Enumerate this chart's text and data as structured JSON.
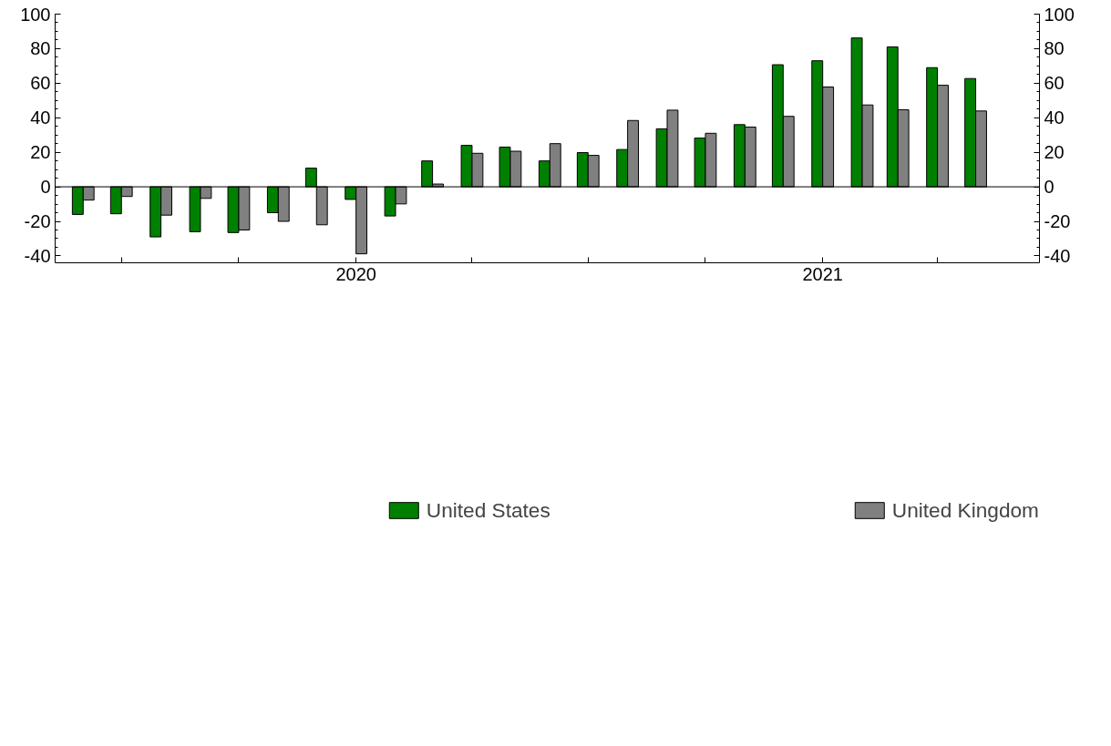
{
  "chart_data": {
    "type": "bar",
    "x": [
      "2019-06",
      "2019-07",
      "2019-08",
      "2019-09",
      "2019-10",
      "2019-11",
      "2019-12",
      "2020-01",
      "2020-02",
      "2020-03",
      "2020-04",
      "2020-05",
      "2020-06",
      "2020-07",
      "2020-08",
      "2020-09",
      "2020-10",
      "2020-11",
      "2020-12",
      "2021-01",
      "2021-02",
      "2021-03",
      "2021-04",
      "2021-05"
    ],
    "series": [
      {
        "name": "United States",
        "color": "#008000",
        "values": [
          -16,
          -15.6,
          -29,
          -26,
          -26.5,
          -15,
          10.8,
          -7.3,
          -16.9,
          15,
          24,
          23,
          15,
          19.8,
          21.6,
          33.6,
          28.2,
          36,
          70.7,
          73,
          86.2,
          81,
          69,
          62.7
        ]
      },
      {
        "name": "United Kingdom",
        "color": "#808080",
        "values": [
          -7.7,
          -5.6,
          -16.4,
          -6.7,
          -25,
          -20,
          -22,
          -38.8,
          -9.9,
          1.6,
          19.4,
          20.6,
          25,
          18.2,
          38.4,
          44.4,
          31,
          34.6,
          40.8,
          57.8,
          47.4,
          44.6,
          58.8,
          43.9
        ]
      }
    ],
    "xlim": [
      "2019-05-10",
      "2021-06-20"
    ],
    "xticks": [
      {
        "value": "2019-07",
        "label": null
      },
      {
        "value": "2019-10",
        "label": null
      },
      {
        "value": "2020-01",
        "label": "2020"
      },
      {
        "value": "2020-04",
        "label": null
      },
      {
        "value": "2020-07",
        "label": null
      },
      {
        "value": "2020-10",
        "label": null
      },
      {
        "value": "2021-01",
        "label": "2021"
      },
      {
        "value": "2021-04",
        "label": null
      }
    ],
    "ylim": [
      -44,
      100
    ],
    "yticks": [
      -40,
      -20,
      0,
      20,
      40,
      60,
      80,
      100
    ],
    "y2lim": [
      -44,
      100
    ],
    "y2ticks": [
      -40,
      -20,
      0,
      20,
      40,
      60,
      80,
      100
    ],
    "ref_lines": [
      {
        "axis": "y",
        "value": 0,
        "color": "#000000"
      }
    ],
    "grid": false,
    "legend": "bottom"
  }
}
